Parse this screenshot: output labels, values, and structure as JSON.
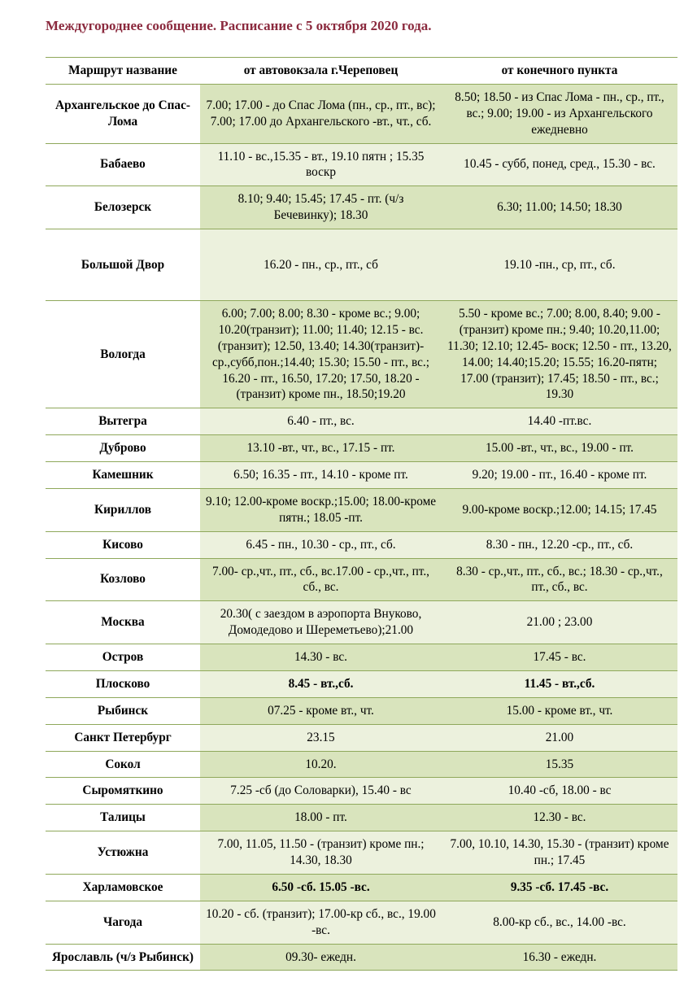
{
  "title_text": "Междугороднее сообщение. Расписание с 5 октября 2020 года.",
  "title_color": "#8b2a3e",
  "border_color": "#8fa85b",
  "row_odd_bg": "#d9e4bd",
  "row_even_bg": "#ecf1dd",
  "columns": [
    "Маршрут название",
    "от автовокзала г.Череповец",
    "от конечного пункта"
  ],
  "rows": [
    {
      "route": "Архангельское до Спас-Лома",
      "c1": "7.00; 17.00 - до Спас Лома (пн., ср., пт., вс); 7.00; 17.00 до Архангельского  -вт., чт., сб.",
      "c2": "8.50; 18.50 - из Спас Лома - пн., ср., пт., вс.; 9.00; 19.00 - из Архангельского ежедневно",
      "bold": false
    },
    {
      "route": "Бабаево",
      "c1": "11.10 - вс.,15.35 - вт., 19.10 пятн ; 15.35 воскр",
      "c2": "10.45 - субб, понед, сред., 15.30 - вс.",
      "bold": false
    },
    {
      "route": "Белозерск",
      "c1": "8.10; 9.40; 15.45; 17.45 - пт. (ч/з Бечевинку); 18.30",
      "c2": "6.30; 11.00; 14.50; 18.30",
      "bold": false
    },
    {
      "route": "Большой Двор",
      "c1": "16.20 - пн., ср., пт., сб",
      "c2": "19.10 -пн., ср, пт., сб.",
      "bold": false,
      "tall": true
    },
    {
      "route": "Вологда",
      "c1": "6.00; 7.00; 8.00; 8.30 - кроме вс.;  9.00; 10.20(транзит); 11.00; 11.40; 12.15 - вс.(транзит);  12.50, 13.40; 14.30(транзит)-ср.,субб,пон.;14.40;  15.30; 15.50 - пт., вс.; 16.20 - пт., 16.50, 17.20; 17.50, 18.20 - (транзит) кроме пн., 18.50;19.20",
      "c2": "5.50 - кроме вс.; 7.00; 8.00, 8.40; 9.00 - (транзит) кроме пн.; 9.40; 10.20,11.00; 11.30;  12.10; 12.45- воск; 12.50 - пт., 13.20, 14.00; 14.40;15.20; 15.55; 16.20-пятн; 17.00 (транзит); 17.45; 18.50 - пт., вс.; 19.30",
      "bold": false
    },
    {
      "route": "Вытегра",
      "c1": "6.40 - пт., вс.",
      "c2": "14.40 -пт.вс.",
      "bold": false
    },
    {
      "route": "Дуброво",
      "c1": "13.10 -вт., чт., вс., 17.15 - пт.",
      "c2": "15.00 -вт., чт., вс., 19.00 - пт.",
      "bold": false
    },
    {
      "route": "Камешник",
      "c1": "6.50; 16.35 - пт., 14.10 - кроме пт.",
      "c2": "9.20; 19.00 - пт., 16.40 - кроме пт.",
      "bold": false
    },
    {
      "route": "Кириллов",
      "c1": "9.10; 12.00-кроме воскр.;15.00; 18.00-кроме пятн.; 18.05 -пт.",
      "c2": "9.00-кроме воскр.;12.00; 14.15; 17.45",
      "bold": false
    },
    {
      "route": "Кисово",
      "c1": "6.45 - пн., 10.30 - ср., пт., сб.",
      "c2": "8.30 - пн., 12.20 -ср., пт., сб.",
      "bold": false
    },
    {
      "route": "Козлово",
      "c1": "7.00- ср.,чт., пт., сб., вс.17.00 - ср.,чт., пт., сб., вс.",
      "c2": "8.30 - ср.,чт., пт., сб., вс.; 18.30 - ср.,чт., пт., сб., вс.",
      "bold": false
    },
    {
      "route": "Москва",
      "c1": "20.30( с заездом в аэропорта Внуково, Домодедово и Шереметьево);21.00",
      "c2": "21.00 ; 23.00",
      "bold": false
    },
    {
      "route": "Остров",
      "c1": "14.30 - вс.",
      "c2": "17.45 - вс.",
      "bold": false
    },
    {
      "route": "Плосково",
      "c1": "8.45 - вт.,сб.",
      "c2": "11.45 - вт.,сб.",
      "bold": true
    },
    {
      "route": "Рыбинск",
      "c1": "07.25 - кроме вт., чт.",
      "c2": "15.00 - кроме вт., чт.",
      "bold": false
    },
    {
      "route": "Санкт Петербург",
      "c1": "23.15",
      "c2": "21.00",
      "bold": false
    },
    {
      "route": "Сокол",
      "c1": "10.20.",
      "c2": "15.35",
      "bold": false
    },
    {
      "route": "Сыромяткино",
      "c1": "7.25 -сб (до Соловарки), 15.40 - вс",
      "c2": "10.40 -сб, 18.00 - вс",
      "bold": false
    },
    {
      "route": "Талицы",
      "c1": "18.00 - пт.",
      "c2": "12.30 - вс.",
      "bold": false
    },
    {
      "route": "Устюжна",
      "c1": "7.00, 11.05, 11.50 - (транзит) кроме пн.; 14.30, 18.30",
      "c2": "7.00, 10.10, 14.30, 15.30 - (транзит) кроме пн.; 17.45",
      "bold": false
    },
    {
      "route": "Харламовское",
      "c1": "6.50 -сб. 15.05 -вс.",
      "c2": "9.35 -сб. 17.45 -вс.",
      "bold": true
    },
    {
      "route": "Чагода",
      "c1": "10.20 - сб. (транзит); 17.00-кр сб., вс., 19.00 -вс.",
      "c2": "8.00-кр сб., вс., 14.00 -вс.",
      "bold": false
    },
    {
      "route": "Ярославль (ч/з Рыбинск)",
      "c1": "09.30- ежедн.",
      "c2": "16.30 - ежедн.",
      "bold": false
    }
  ]
}
